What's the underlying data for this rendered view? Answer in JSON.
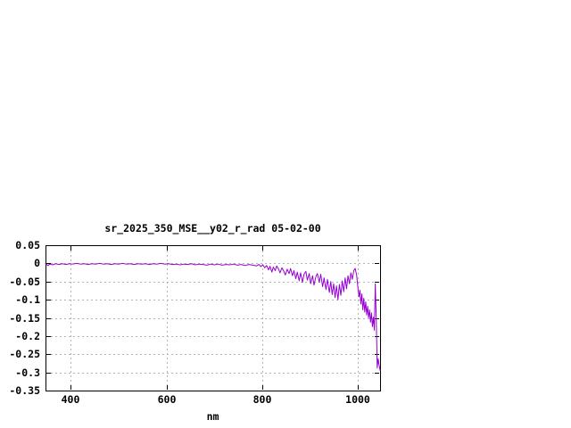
{
  "page": {
    "background_color": "#ffffff"
  },
  "chart_data": {
    "type": "line",
    "title": "sr_2025_350_MSE__y02_r_rad 05-02-00",
    "xlabel": "nm",
    "ylabel": "",
    "legend": "none",
    "grid": true,
    "xlim": [
      347,
      1046
    ],
    "ylim": [
      -0.35,
      0.05
    ],
    "xtick_values": [
      400,
      600,
      800,
      1000
    ],
    "xtick_labels": [
      "400",
      "600",
      "800",
      "1000"
    ],
    "ytick_values": [
      0.05,
      0,
      -0.05,
      -0.1,
      -0.15,
      -0.2,
      -0.25,
      -0.3,
      -0.35
    ],
    "ytick_labels": [
      "0.05",
      "0",
      "-0.05",
      "-0.1",
      "-0.15",
      "-0.2",
      "-0.25",
      "-0.3",
      "-0.35"
    ],
    "line_color": "#9400D3",
    "grid_color": "#b3b3b3",
    "border_color": "#000000",
    "text_color": "#000000",
    "series": [
      {
        "name": "sr_2025_350_MSE__y02_r_rad",
        "x": [
          347,
          352,
          356,
          362,
          368,
          375,
          382,
          390,
          397,
          404,
          412,
          420,
          428,
          436,
          444,
          452,
          460,
          468,
          476,
          484,
          492,
          500,
          508,
          516,
          524,
          532,
          540,
          548,
          556,
          564,
          572,
          580,
          588,
          596,
          604,
          612,
          620,
          628,
          636,
          644,
          652,
          660,
          668,
          676,
          684,
          692,
          700,
          708,
          716,
          724,
          732,
          740,
          748,
          756,
          764,
          772,
          780,
          788,
          793,
          797,
          801,
          805,
          809,
          813,
          816,
          820,
          823,
          827,
          830,
          834,
          837,
          841,
          845,
          848,
          852,
          856,
          859,
          863,
          866,
          870,
          873,
          877,
          880,
          884,
          887,
          891,
          894,
          898,
          901,
          905,
          908,
          912,
          915,
          919,
          922,
          926,
          929,
          933,
          936,
          940,
          943,
          946,
          949,
          952,
          955,
          958,
          961,
          964,
          967,
          970,
          973,
          976,
          979,
          982,
          985,
          988,
          991,
          994,
          997,
          1000,
          1002,
          1004,
          1006,
          1008,
          1010,
          1012,
          1014,
          1016,
          1018,
          1020,
          1022,
          1024,
          1026,
          1028,
          1030,
          1032,
          1034,
          1036,
          1038,
          1040,
          1042,
          1044,
          1046
        ],
        "y": [
          0,
          -0.006,
          -0.002,
          -0.004,
          -0.001,
          -0.003,
          -0.001,
          -0.003,
          -0.001,
          -0.002,
          0,
          -0.002,
          -0.001,
          -0.003,
          -0.001,
          -0.002,
          0,
          -0.002,
          -0.001,
          -0.003,
          -0.001,
          -0.002,
          0,
          -0.002,
          -0.001,
          -0.003,
          -0.001,
          -0.002,
          -0.001,
          -0.003,
          -0.001,
          -0.002,
          0,
          -0.002,
          -0.001,
          -0.003,
          -0.002,
          -0.004,
          -0.002,
          -0.003,
          -0.001,
          -0.004,
          -0.002,
          -0.003,
          -0.005,
          -0.002,
          -0.004,
          -0.002,
          -0.005,
          -0.003,
          -0.004,
          -0.002,
          -0.005,
          -0.003,
          -0.006,
          -0.003,
          -0.005,
          -0.007,
          -0.003,
          -0.009,
          -0.004,
          -0.012,
          -0.006,
          -0.018,
          -0.008,
          -0.024,
          -0.01,
          -0.02,
          -0.007,
          -0.016,
          -0.026,
          -0.012,
          -0.022,
          -0.032,
          -0.016,
          -0.028,
          -0.014,
          -0.034,
          -0.02,
          -0.042,
          -0.024,
          -0.048,
          -0.026,
          -0.052,
          -0.03,
          -0.022,
          -0.046,
          -0.028,
          -0.056,
          -0.034,
          -0.06,
          -0.036,
          -0.028,
          -0.052,
          -0.03,
          -0.064,
          -0.04,
          -0.072,
          -0.044,
          -0.08,
          -0.05,
          -0.086,
          -0.056,
          -0.094,
          -0.062,
          -0.1,
          -0.058,
          -0.088,
          -0.048,
          -0.078,
          -0.04,
          -0.07,
          -0.034,
          -0.056,
          -0.026,
          -0.044,
          -0.02,
          -0.014,
          -0.032,
          -0.07,
          -0.092,
          -0.074,
          -0.112,
          -0.084,
          -0.128,
          -0.096,
          -0.134,
          -0.106,
          -0.142,
          -0.118,
          -0.15,
          -0.128,
          -0.162,
          -0.136,
          -0.174,
          -0.148,
          -0.184,
          -0.056,
          -0.15,
          -0.288,
          -0.262,
          -0.28,
          -0.294
        ]
      }
    ]
  }
}
